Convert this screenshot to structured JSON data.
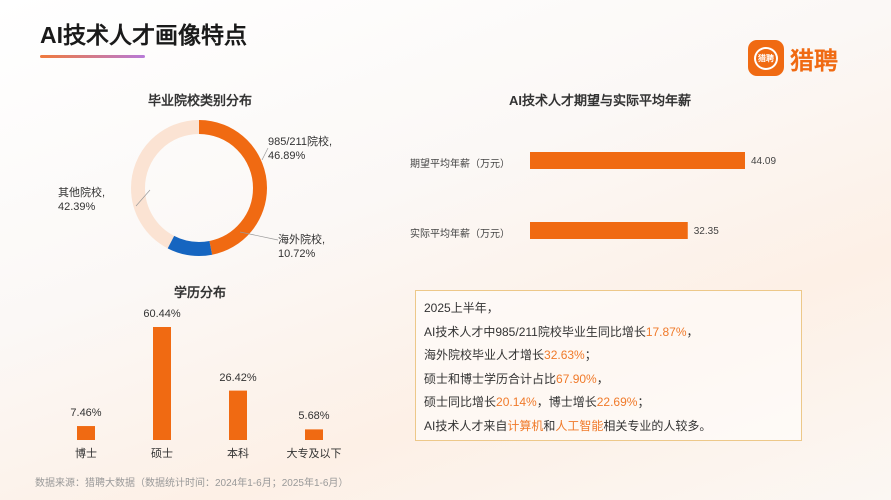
{
  "header": {
    "title": "AI技术人才画像特点",
    "logo_text": "猎聘",
    "logo_mark": "猎聘"
  },
  "colors": {
    "accent": "#f06a12",
    "blue": "#1565c0",
    "light": "#fbe3d3"
  },
  "chart_data": [
    {
      "type": "pie",
      "title": "毕业院校类别分布",
      "donut": true,
      "slices": [
        {
          "name": "985/211院校",
          "value": 46.89,
          "label": "985/211院校,",
          "pct": "46.89%",
          "color": "#f06a12"
        },
        {
          "name": "海外院校",
          "value": 10.72,
          "label": "海外院校,",
          "pct": "10.72%",
          "color": "#1565c0"
        },
        {
          "name": "其他院校",
          "value": 42.39,
          "label": "其他院校,",
          "pct": "42.39%",
          "color": "#fbe3d3"
        }
      ]
    },
    {
      "type": "bar",
      "orientation": "horizontal",
      "title": "AI技术人才期望与实际平均年薪",
      "categories": [
        "期望平均年薪（万元）",
        "实际平均年薪（万元）"
      ],
      "values": [
        44.09,
        32.35
      ],
      "value_labels": [
        "44.09",
        "32.35"
      ],
      "xlim": [
        0,
        44.09
      ]
    },
    {
      "type": "bar",
      "title": "学历分布",
      "categories": [
        "博士",
        "硕士",
        "本科",
        "大专及以下"
      ],
      "values": [
        7.46,
        60.44,
        26.42,
        5.68
      ],
      "value_labels": [
        "7.46%",
        "60.44%",
        "26.42%",
        "5.68%"
      ],
      "ylim": [
        0,
        60.44
      ]
    }
  ],
  "summary": {
    "l1": "2025上半年，",
    "l2a": "AI技术人才中985/211院校毕业生同比增长",
    "l2b": "17.87%",
    "l2c": "，",
    "l3a": "海外院校毕业人才增长",
    "l3b": "32.63%",
    "l3c": "；",
    "l4a": "硕士和博士学历合计占比",
    "l4b": "67.90%",
    "l4c": "，",
    "l5a": "硕士同比增长",
    "l5b": "20.14%",
    "l5c": "，博士增长",
    "l5d": "22.69%",
    "l5e": "；",
    "l6a": "AI技术人才来自",
    "l6b": "计算机",
    "l6c": "和",
    "l6d": "人工智能",
    "l6e": "相关专业的人较多。"
  },
  "source": "数据来源：猎聘大数据（数据统计时间：2024年1-6月；2025年1-6月）"
}
